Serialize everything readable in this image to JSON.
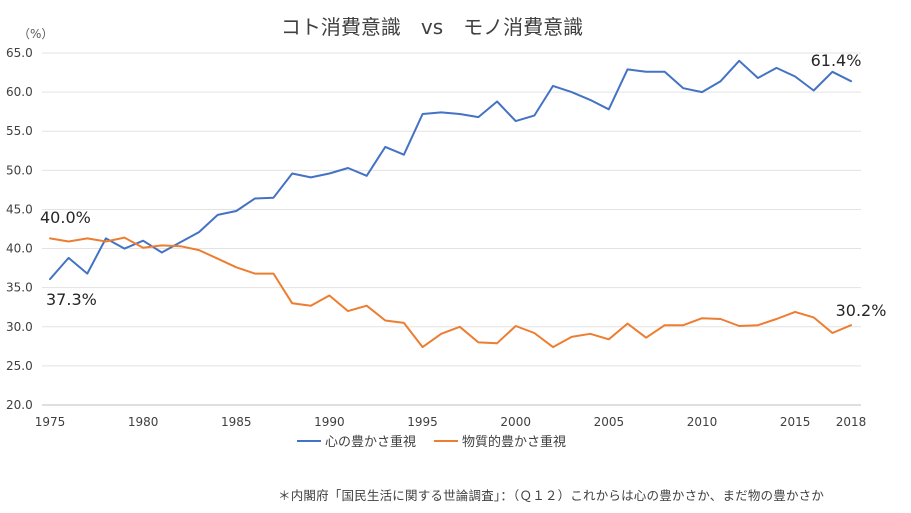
{
  "chart_data": {
    "type": "line",
    "title": "コト消費意識　vs　モノ消費意識",
    "unit_label": "（%）",
    "x": [
      1975,
      1976,
      1977,
      1978,
      1979,
      1980,
      1981,
      1982,
      1983,
      1984,
      1985,
      1986,
      1987,
      1988,
      1989,
      1990,
      1991,
      1992,
      1993,
      1994,
      1995,
      1996,
      1997,
      1998,
      1999,
      2000,
      2001,
      2002,
      2003,
      2004,
      2005,
      2006,
      2007,
      2008,
      2009,
      2010,
      2011,
      2012,
      2013,
      2014,
      2015,
      2016,
      2017,
      2018
    ],
    "x_ticks": [
      "1975",
      "1980",
      "1985",
      "1990",
      "1995",
      "2000",
      "2005",
      "2010",
      "2015",
      "2018"
    ],
    "ylim": [
      20,
      65
    ],
    "y_ticks": [
      "65.0",
      "60.0",
      "55.0",
      "50.0",
      "45.0",
      "40.0",
      "35.0",
      "30.0",
      "25.0",
      "20.0"
    ],
    "grid": true,
    "legend_position": "bottom",
    "series": [
      {
        "name": "心の豊かさ重視",
        "color": "#4472C4",
        "values": [
          36.1,
          38.8,
          36.8,
          41.3,
          40.0,
          41.0,
          39.5,
          40.8,
          42.1,
          44.3,
          44.8,
          46.4,
          46.5,
          49.6,
          49.1,
          49.6,
          50.3,
          49.3,
          53.0,
          52.0,
          57.2,
          57.4,
          57.2,
          56.8,
          58.8,
          56.3,
          57.0,
          60.8,
          60.0,
          59.0,
          57.8,
          62.9,
          62.6,
          62.6,
          60.5,
          60.0,
          61.4,
          64.0,
          61.8,
          63.1,
          62.0,
          60.2,
          62.6,
          61.4
        ]
      },
      {
        "name": "物質的豊かさ重視",
        "color": "#ED7D31",
        "values": [
          41.3,
          40.9,
          41.3,
          40.9,
          41.4,
          40.1,
          40.4,
          40.3,
          39.8,
          38.7,
          37.6,
          36.8,
          36.8,
          33.0,
          32.7,
          34.0,
          32.0,
          32.7,
          30.8,
          30.5,
          27.4,
          29.1,
          30.0,
          28.0,
          27.9,
          30.1,
          29.2,
          27.4,
          28.7,
          29.1,
          28.4,
          30.4,
          28.6,
          30.2,
          30.2,
          31.1,
          31.0,
          30.1,
          30.2,
          31.0,
          31.9,
          31.2,
          29.2,
          30.2
        ]
      }
    ],
    "annotations": [
      {
        "text": "61.4%"
      },
      {
        "text": "40.0%"
      },
      {
        "text": "37.3%"
      },
      {
        "text": "30.2%"
      }
    ]
  },
  "footnote": "＊内閣府「国民生活に関する世論調査」：（Ｑ１２）これからは心の豊かさか、まだ物の豊かさか"
}
